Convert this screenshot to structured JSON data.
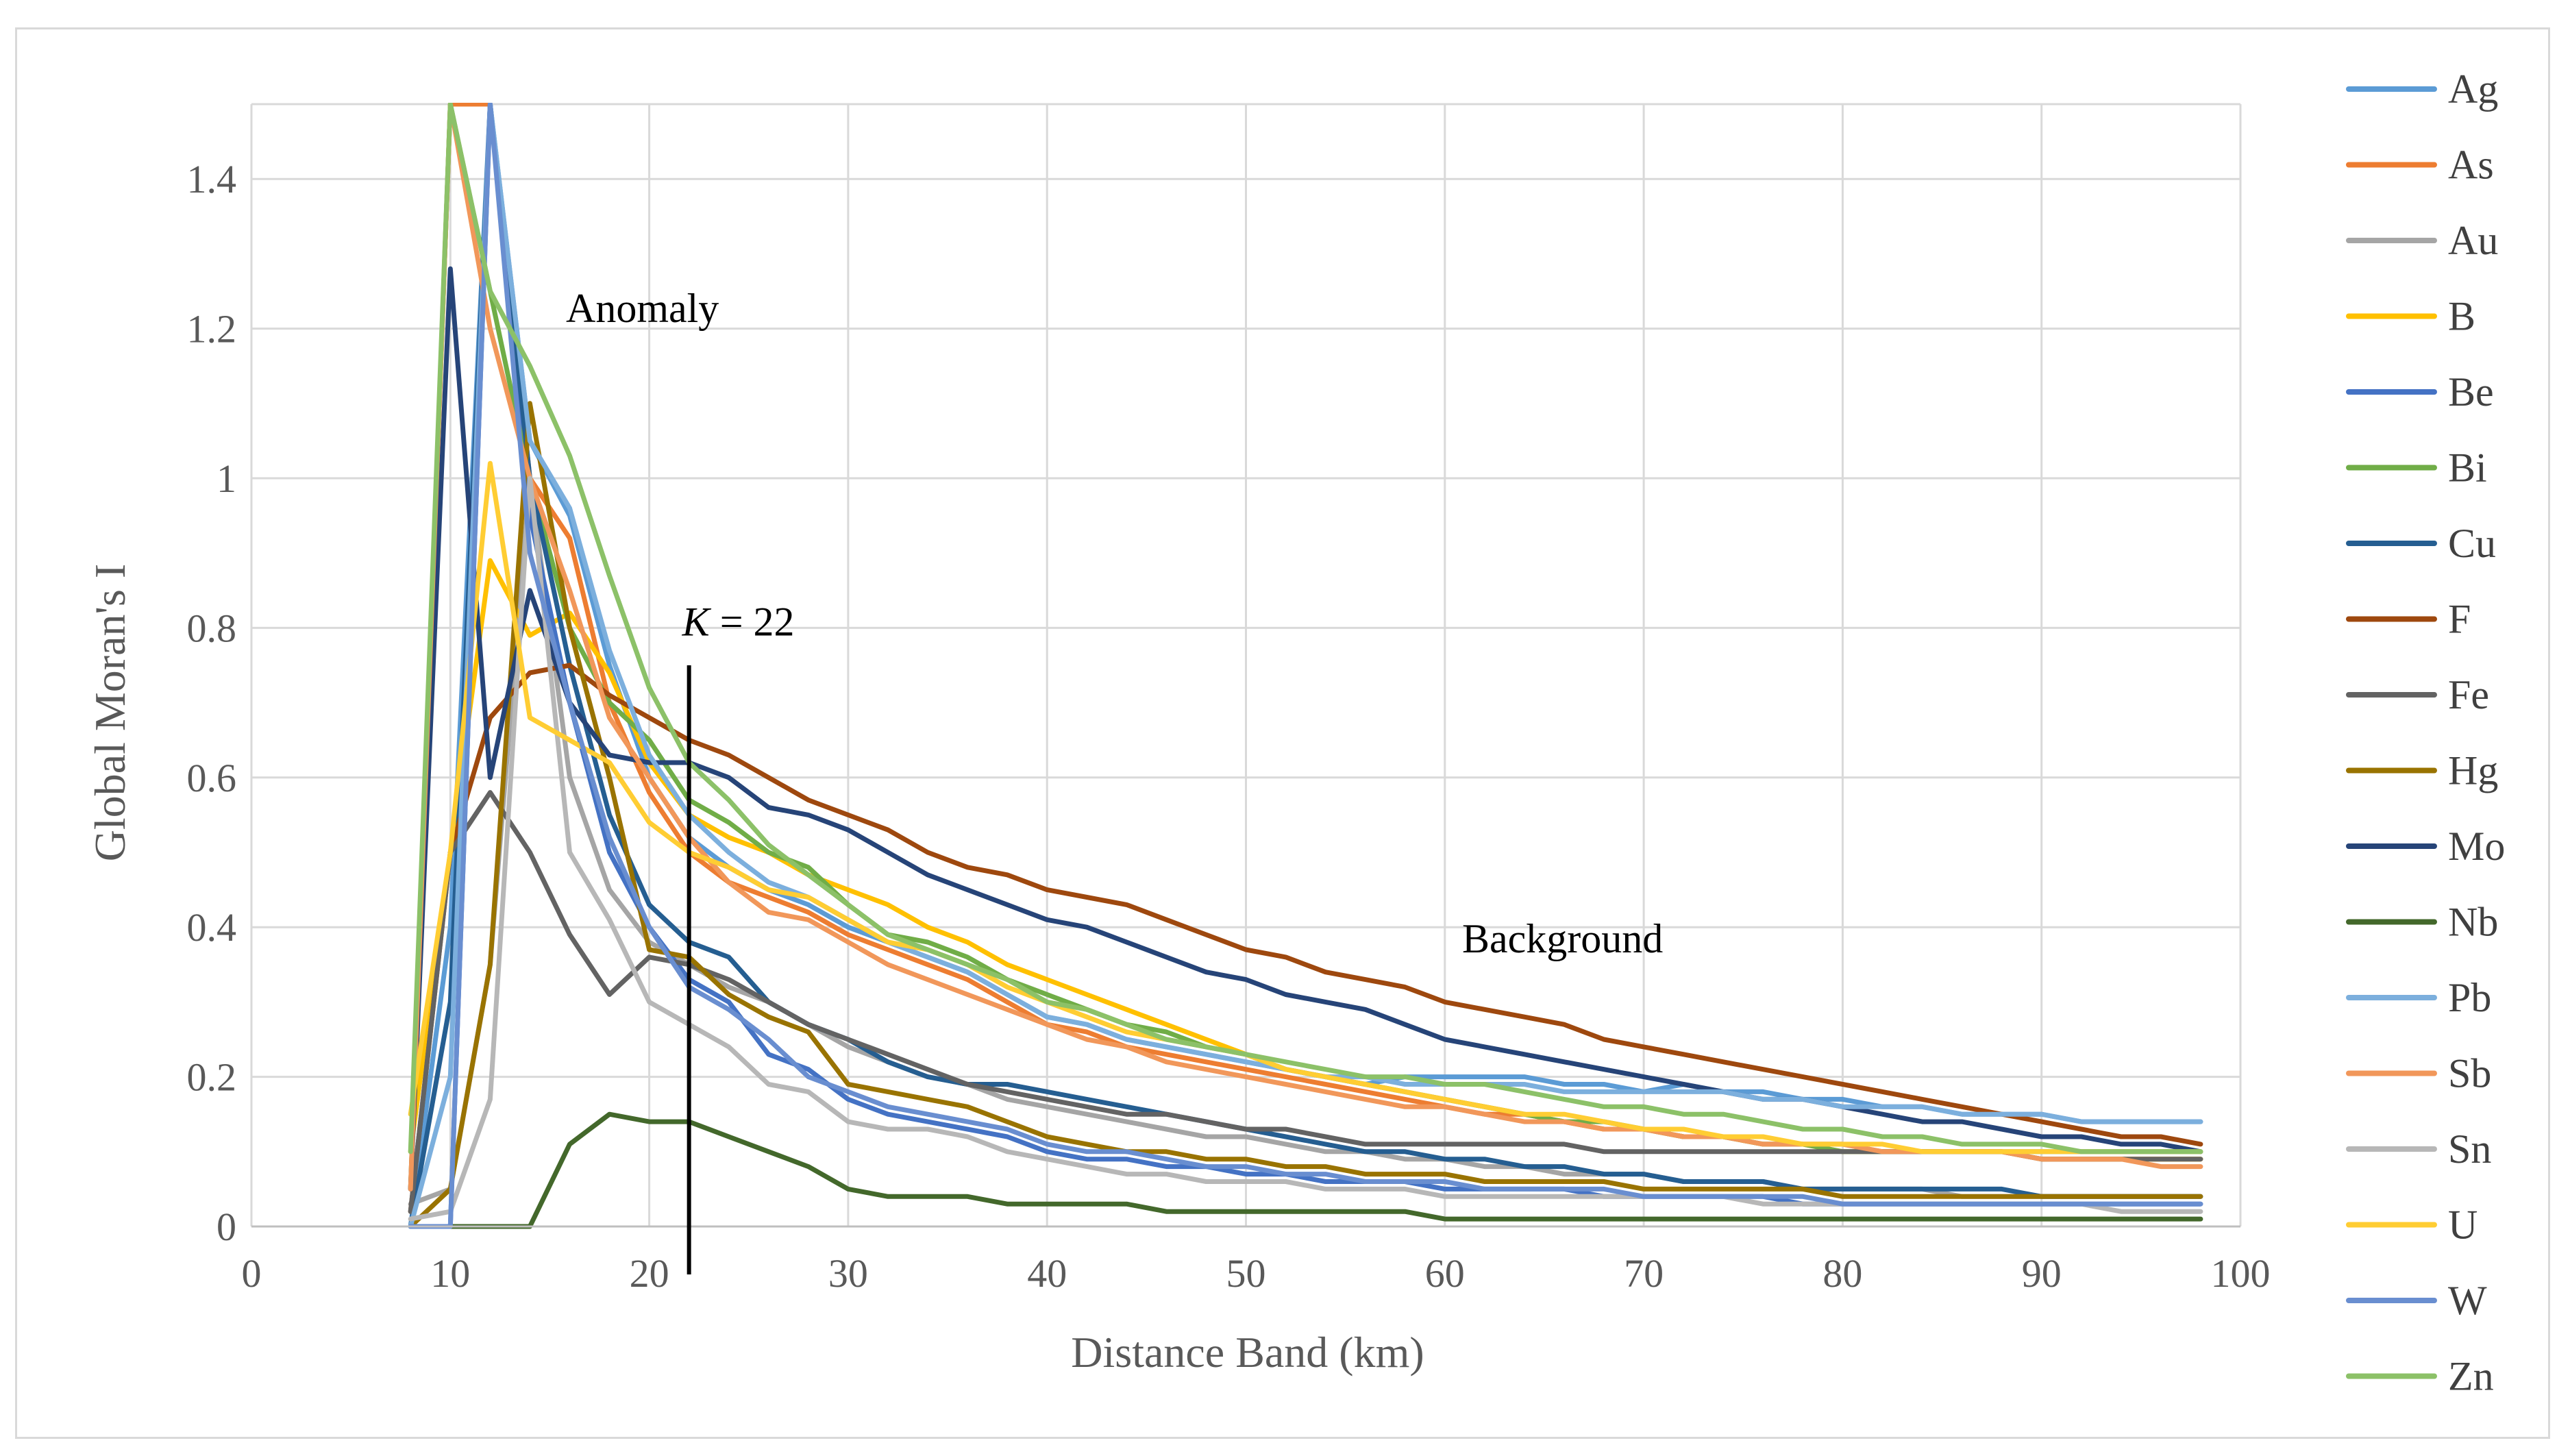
{
  "chart_data": {
    "type": "line",
    "title": "",
    "xlabel": "Distance Band (km)",
    "ylabel": "Global Moran's I",
    "xlim": [
      0,
      100
    ],
    "ylim": [
      0,
      1.5
    ],
    "grid": true,
    "legend_position": "right",
    "x_ticks": [
      "0",
      "10",
      "20",
      "30",
      "40",
      "50",
      "60",
      "70",
      "80",
      "90",
      "100"
    ],
    "y_ticks": [
      "0",
      "0.2",
      "0.4",
      "0.6",
      "0.8",
      "1",
      "1.2",
      "1.4"
    ],
    "annotations": {
      "anomaly": "Anomaly",
      "background": "Background",
      "k_italic": "K",
      "k_value": " = 22",
      "k_line_x": 22
    },
    "x": [
      8,
      10,
      12,
      14,
      16,
      18,
      20,
      22,
      24,
      26,
      28,
      30,
      32,
      34,
      36,
      38,
      40,
      42,
      44,
      46,
      48,
      50,
      52,
      54,
      56,
      58,
      60,
      62,
      64,
      66,
      68,
      70,
      72,
      74,
      76,
      78,
      80,
      82,
      84,
      86,
      88,
      90,
      92,
      94,
      96,
      98
    ],
    "series": [
      {
        "name": "Ag",
        "color": "#5b9bd5",
        "values": [
          0.0,
          0.4,
          1.5,
          1.05,
          0.95,
          0.75,
          0.6,
          0.52,
          0.48,
          0.45,
          0.43,
          0.4,
          0.38,
          0.36,
          0.34,
          0.31,
          0.28,
          0.27,
          0.25,
          0.24,
          0.23,
          0.22,
          0.21,
          0.2,
          0.19,
          0.2,
          0.2,
          0.2,
          0.2,
          0.19,
          0.19,
          0.18,
          0.19,
          0.18,
          0.18,
          0.17,
          0.17,
          0.16,
          0.16,
          0.15,
          0.15,
          0.15,
          0.14,
          0.14,
          0.14,
          0.14
        ]
      },
      {
        "name": "As",
        "color": "#ed7d31",
        "values": [
          0.05,
          1.5,
          1.5,
          1.0,
          0.92,
          0.7,
          0.58,
          0.5,
          0.46,
          0.44,
          0.42,
          0.39,
          0.37,
          0.35,
          0.33,
          0.3,
          0.27,
          0.26,
          0.24,
          0.23,
          0.22,
          0.21,
          0.2,
          0.19,
          0.18,
          0.17,
          0.16,
          0.15,
          0.15,
          0.14,
          0.13,
          0.13,
          0.12,
          0.12,
          0.11,
          0.11,
          0.11,
          0.1,
          0.1,
          0.1,
          0.1,
          0.09,
          0.09,
          0.09,
          0.09,
          0.09
        ]
      },
      {
        "name": "Au",
        "color": "#a5a5a5",
        "values": [
          0.03,
          0.05,
          0.35,
          1.0,
          0.6,
          0.45,
          0.38,
          0.35,
          0.32,
          0.3,
          0.27,
          0.24,
          0.22,
          0.2,
          0.19,
          0.17,
          0.16,
          0.15,
          0.14,
          0.13,
          0.12,
          0.12,
          0.11,
          0.1,
          0.1,
          0.09,
          0.09,
          0.08,
          0.08,
          0.07,
          0.07,
          0.07,
          0.06,
          0.06,
          0.06,
          0.05,
          0.05,
          0.05,
          0.05,
          0.04,
          0.04,
          0.04,
          0.04,
          0.04,
          0.04,
          0.04
        ]
      },
      {
        "name": "B",
        "color": "#ffc000",
        "values": [
          0.1,
          0.5,
          0.89,
          0.79,
          0.82,
          0.74,
          0.62,
          0.55,
          0.52,
          0.5,
          0.47,
          0.45,
          0.43,
          0.4,
          0.38,
          0.35,
          0.33,
          0.31,
          0.29,
          0.27,
          0.25,
          0.23,
          0.21,
          0.2,
          0.19,
          0.18,
          0.17,
          0.16,
          0.15,
          0.14,
          0.13,
          0.13,
          0.12,
          0.12,
          0.11,
          0.11,
          0.1,
          0.1,
          0.1,
          0.1,
          0.1,
          0.09,
          0.09,
          0.09,
          0.09,
          0.09
        ]
      },
      {
        "name": "Be",
        "color": "#4472c4",
        "values": [
          0.0,
          0.0,
          1.5,
          0.95,
          0.7,
          0.5,
          0.4,
          0.33,
          0.3,
          0.23,
          0.21,
          0.17,
          0.15,
          0.14,
          0.13,
          0.12,
          0.1,
          0.09,
          0.09,
          0.08,
          0.08,
          0.07,
          0.07,
          0.06,
          0.06,
          0.06,
          0.05,
          0.05,
          0.05,
          0.05,
          0.04,
          0.04,
          0.04,
          0.04,
          0.04,
          0.03,
          0.03,
          0.03,
          0.03,
          0.03,
          0.03,
          0.03,
          0.03,
          0.03,
          0.03,
          0.03
        ]
      },
      {
        "name": "Bi",
        "color": "#70ad47",
        "values": [
          0.05,
          1.5,
          1.25,
          1.0,
          0.8,
          0.7,
          0.65,
          0.57,
          0.54,
          0.5,
          0.48,
          0.43,
          0.39,
          0.38,
          0.36,
          0.33,
          0.31,
          0.29,
          0.27,
          0.26,
          0.24,
          0.23,
          0.21,
          0.2,
          0.19,
          0.18,
          0.17,
          0.16,
          0.15,
          0.14,
          0.14,
          0.13,
          0.12,
          0.12,
          0.11,
          0.11,
          0.1,
          0.1,
          0.1,
          0.1,
          0.1,
          0.1,
          0.1,
          0.1,
          0.1,
          0.1
        ]
      },
      {
        "name": "Cu",
        "color": "#255e91",
        "values": [
          0.0,
          0.3,
          1.5,
          1.0,
          0.75,
          0.55,
          0.43,
          0.38,
          0.36,
          0.3,
          0.27,
          0.25,
          0.22,
          0.2,
          0.19,
          0.19,
          0.18,
          0.17,
          0.16,
          0.15,
          0.14,
          0.13,
          0.12,
          0.11,
          0.1,
          0.1,
          0.09,
          0.09,
          0.08,
          0.08,
          0.07,
          0.07,
          0.06,
          0.06,
          0.06,
          0.05,
          0.05,
          0.05,
          0.05,
          0.05,
          0.05,
          0.04,
          0.04,
          0.04,
          0.04,
          0.04
        ]
      },
      {
        "name": "F",
        "color": "#9e480e",
        "values": [
          0.02,
          0.5,
          0.68,
          0.74,
          0.75,
          0.71,
          0.68,
          0.65,
          0.63,
          0.6,
          0.57,
          0.55,
          0.53,
          0.5,
          0.48,
          0.47,
          0.45,
          0.44,
          0.43,
          0.41,
          0.39,
          0.37,
          0.36,
          0.34,
          0.33,
          0.32,
          0.3,
          0.29,
          0.28,
          0.27,
          0.25,
          0.24,
          0.23,
          0.22,
          0.21,
          0.2,
          0.19,
          0.18,
          0.17,
          0.16,
          0.15,
          0.14,
          0.13,
          0.12,
          0.12,
          0.11
        ]
      },
      {
        "name": "Fe",
        "color": "#636363",
        "values": [
          0.02,
          0.5,
          0.58,
          0.5,
          0.39,
          0.31,
          0.36,
          0.35,
          0.33,
          0.3,
          0.27,
          0.25,
          0.23,
          0.21,
          0.19,
          0.18,
          0.17,
          0.16,
          0.15,
          0.15,
          0.14,
          0.13,
          0.13,
          0.12,
          0.11,
          0.11,
          0.11,
          0.11,
          0.11,
          0.11,
          0.1,
          0.1,
          0.1,
          0.1,
          0.1,
          0.1,
          0.1,
          0.1,
          0.1,
          0.1,
          0.1,
          0.09,
          0.09,
          0.09,
          0.09,
          0.09
        ]
      },
      {
        "name": "Hg",
        "color": "#997300",
        "values": [
          0.0,
          0.05,
          0.35,
          1.1,
          0.8,
          0.6,
          0.37,
          0.36,
          0.31,
          0.28,
          0.26,
          0.19,
          0.18,
          0.17,
          0.16,
          0.14,
          0.12,
          0.11,
          0.1,
          0.1,
          0.09,
          0.09,
          0.08,
          0.08,
          0.07,
          0.07,
          0.07,
          0.06,
          0.06,
          0.06,
          0.06,
          0.05,
          0.05,
          0.05,
          0.05,
          0.05,
          0.04,
          0.04,
          0.04,
          0.04,
          0.04,
          0.04,
          0.04,
          0.04,
          0.04,
          0.04
        ]
      },
      {
        "name": "Mo",
        "color": "#264478",
        "values": [
          0.05,
          1.28,
          0.6,
          0.85,
          0.7,
          0.63,
          0.62,
          0.62,
          0.6,
          0.56,
          0.55,
          0.53,
          0.5,
          0.47,
          0.45,
          0.43,
          0.41,
          0.4,
          0.38,
          0.36,
          0.34,
          0.33,
          0.31,
          0.3,
          0.29,
          0.27,
          0.25,
          0.24,
          0.23,
          0.22,
          0.21,
          0.2,
          0.19,
          0.18,
          0.17,
          0.17,
          0.16,
          0.15,
          0.14,
          0.14,
          0.13,
          0.12,
          0.12,
          0.11,
          0.11,
          0.1
        ]
      },
      {
        "name": "Nb",
        "color": "#43682b",
        "values": [
          0.0,
          0.0,
          0.0,
          0.0,
          0.11,
          0.15,
          0.14,
          0.14,
          0.12,
          0.1,
          0.08,
          0.05,
          0.04,
          0.04,
          0.04,
          0.03,
          0.03,
          0.03,
          0.03,
          0.02,
          0.02,
          0.02,
          0.02,
          0.02,
          0.02,
          0.02,
          0.01,
          0.01,
          0.01,
          0.01,
          0.01,
          0.01,
          0.01,
          0.01,
          0.01,
          0.01,
          0.01,
          0.01,
          0.01,
          0.01,
          0.01,
          0.01,
          0.01,
          0.01,
          0.01,
          0.01
        ]
      },
      {
        "name": "Pb",
        "color": "#7cafdd",
        "values": [
          0.0,
          0.2,
          1.5,
          1.05,
          0.96,
          0.77,
          0.63,
          0.55,
          0.5,
          0.46,
          0.44,
          0.41,
          0.38,
          0.36,
          0.34,
          0.31,
          0.28,
          0.27,
          0.25,
          0.24,
          0.23,
          0.22,
          0.21,
          0.2,
          0.2,
          0.19,
          0.19,
          0.19,
          0.19,
          0.18,
          0.18,
          0.18,
          0.18,
          0.18,
          0.17,
          0.17,
          0.16,
          0.16,
          0.16,
          0.15,
          0.15,
          0.15,
          0.14,
          0.14,
          0.14,
          0.14
        ]
      },
      {
        "name": "Sb",
        "color": "#f1975a",
        "values": [
          0.05,
          1.5,
          1.2,
          1.0,
          0.85,
          0.68,
          0.6,
          0.52,
          0.46,
          0.42,
          0.41,
          0.38,
          0.35,
          0.33,
          0.31,
          0.29,
          0.27,
          0.25,
          0.24,
          0.22,
          0.21,
          0.2,
          0.19,
          0.18,
          0.17,
          0.16,
          0.16,
          0.15,
          0.14,
          0.14,
          0.13,
          0.13,
          0.12,
          0.12,
          0.11,
          0.11,
          0.11,
          0.1,
          0.1,
          0.1,
          0.1,
          0.09,
          0.09,
          0.09,
          0.08,
          0.08
        ]
      },
      {
        "name": "Sn",
        "color": "#b7b7b7",
        "values": [
          0.01,
          0.02,
          0.17,
          1.0,
          0.5,
          0.41,
          0.3,
          0.27,
          0.24,
          0.19,
          0.18,
          0.14,
          0.13,
          0.13,
          0.12,
          0.1,
          0.09,
          0.08,
          0.07,
          0.07,
          0.06,
          0.06,
          0.06,
          0.05,
          0.05,
          0.05,
          0.04,
          0.04,
          0.04,
          0.04,
          0.04,
          0.04,
          0.04,
          0.04,
          0.03,
          0.03,
          0.03,
          0.03,
          0.03,
          0.03,
          0.03,
          0.03,
          0.03,
          0.02,
          0.02,
          0.02
        ]
      },
      {
        "name": "U",
        "color": "#ffcd33",
        "values": [
          0.15,
          0.5,
          1.02,
          0.68,
          0.65,
          0.62,
          0.54,
          0.5,
          0.48,
          0.45,
          0.44,
          0.41,
          0.38,
          0.37,
          0.35,
          0.32,
          0.3,
          0.28,
          0.26,
          0.25,
          0.24,
          0.23,
          0.21,
          0.2,
          0.19,
          0.18,
          0.17,
          0.16,
          0.15,
          0.15,
          0.14,
          0.13,
          0.13,
          0.12,
          0.12,
          0.11,
          0.11,
          0.11,
          0.1,
          0.1,
          0.1,
          0.1,
          0.1,
          0.1,
          0.1,
          0.1
        ]
      },
      {
        "name": "W",
        "color": "#698ed0",
        "values": [
          0.0,
          0.0,
          1.5,
          0.9,
          0.7,
          0.52,
          0.4,
          0.32,
          0.29,
          0.25,
          0.2,
          0.18,
          0.16,
          0.15,
          0.14,
          0.13,
          0.11,
          0.1,
          0.1,
          0.09,
          0.08,
          0.08,
          0.07,
          0.07,
          0.06,
          0.06,
          0.06,
          0.05,
          0.05,
          0.05,
          0.05,
          0.04,
          0.04,
          0.04,
          0.04,
          0.04,
          0.03,
          0.03,
          0.03,
          0.03,
          0.03,
          0.03,
          0.03,
          0.03,
          0.03,
          0.03
        ]
      },
      {
        "name": "Zn",
        "color": "#8cc168",
        "values": [
          0.1,
          1.5,
          1.25,
          1.15,
          1.03,
          0.87,
          0.72,
          0.62,
          0.57,
          0.51,
          0.47,
          0.43,
          0.39,
          0.37,
          0.35,
          0.33,
          0.3,
          0.29,
          0.27,
          0.25,
          0.24,
          0.23,
          0.22,
          0.21,
          0.2,
          0.2,
          0.19,
          0.19,
          0.18,
          0.17,
          0.16,
          0.16,
          0.15,
          0.15,
          0.14,
          0.13,
          0.13,
          0.12,
          0.12,
          0.11,
          0.11,
          0.11,
          0.1,
          0.1,
          0.1,
          0.1
        ]
      }
    ]
  }
}
